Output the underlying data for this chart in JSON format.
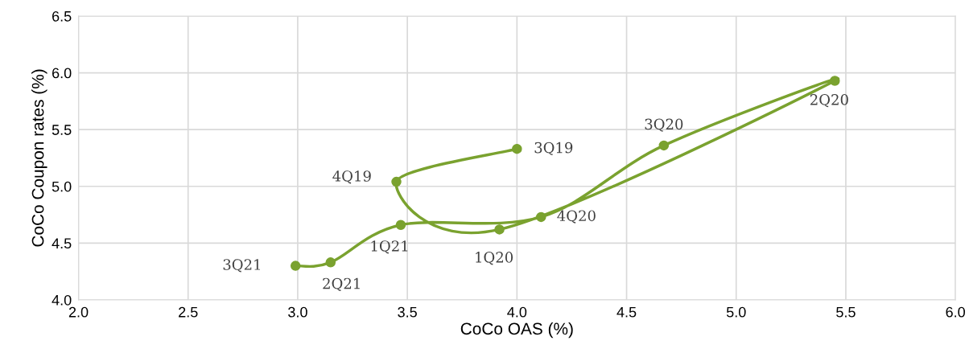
{
  "chart_data": {
    "type": "line",
    "xlabel": "CoCo OAS (%)",
    "ylabel": "CoCo Coupon rates (%)",
    "x": [
      4.0,
      3.45,
      3.92,
      5.45,
      4.67,
      4.11,
      3.47,
      3.15,
      2.99
    ],
    "values": [
      5.33,
      5.04,
      4.62,
      5.93,
      5.36,
      4.73,
      4.66,
      4.33,
      4.3
    ],
    "color": "#7aa22f",
    "marker": "circle",
    "line_style": "solid",
    "grid": true,
    "xlim": [
      2.0,
      6.0
    ],
    "xticks": [
      {
        "value": 2.0,
        "label": "2.0"
      },
      {
        "value": 2.5,
        "label": "2.5"
      },
      {
        "value": 3.0,
        "label": "3.0"
      },
      {
        "value": 3.5,
        "label": "3.5"
      },
      {
        "value": 4.0,
        "label": "4.0"
      },
      {
        "value": 4.5,
        "label": "4.5"
      },
      {
        "value": 5.0,
        "label": "5.0"
      },
      {
        "value": 5.5,
        "label": "5.5"
      },
      {
        "value": 6.0,
        "label": "6.0"
      }
    ],
    "ylim": [
      4.0,
      6.5
    ],
    "yticks": [
      {
        "value": 4.0,
        "label": "4.0"
      },
      {
        "value": 4.5,
        "label": "4.5"
      },
      {
        "value": 5.0,
        "label": "5.0"
      },
      {
        "value": 5.5,
        "label": "5.5"
      },
      {
        "value": 6.0,
        "label": "6.0"
      },
      {
        "value": 6.5,
        "label": "6.5"
      }
    ],
    "annotations": [
      {
        "text": "3Q19",
        "x": 4.0,
        "y": 5.33
      },
      {
        "text": "4Q19",
        "x": 3.45,
        "y": 5.04
      },
      {
        "text": "1Q20",
        "x": 3.92,
        "y": 4.62
      },
      {
        "text": "2Q20",
        "x": 5.45,
        "y": 5.93
      },
      {
        "text": "3Q20",
        "x": 4.67,
        "y": 5.36
      },
      {
        "text": "4Q20",
        "x": 4.11,
        "y": 4.73
      },
      {
        "text": "1Q21",
        "x": 3.47,
        "y": 4.66
      },
      {
        "text": "2Q21",
        "x": 3.15,
        "y": 4.33
      },
      {
        "text": "3Q21",
        "x": 2.99,
        "y": 4.3
      }
    ]
  }
}
